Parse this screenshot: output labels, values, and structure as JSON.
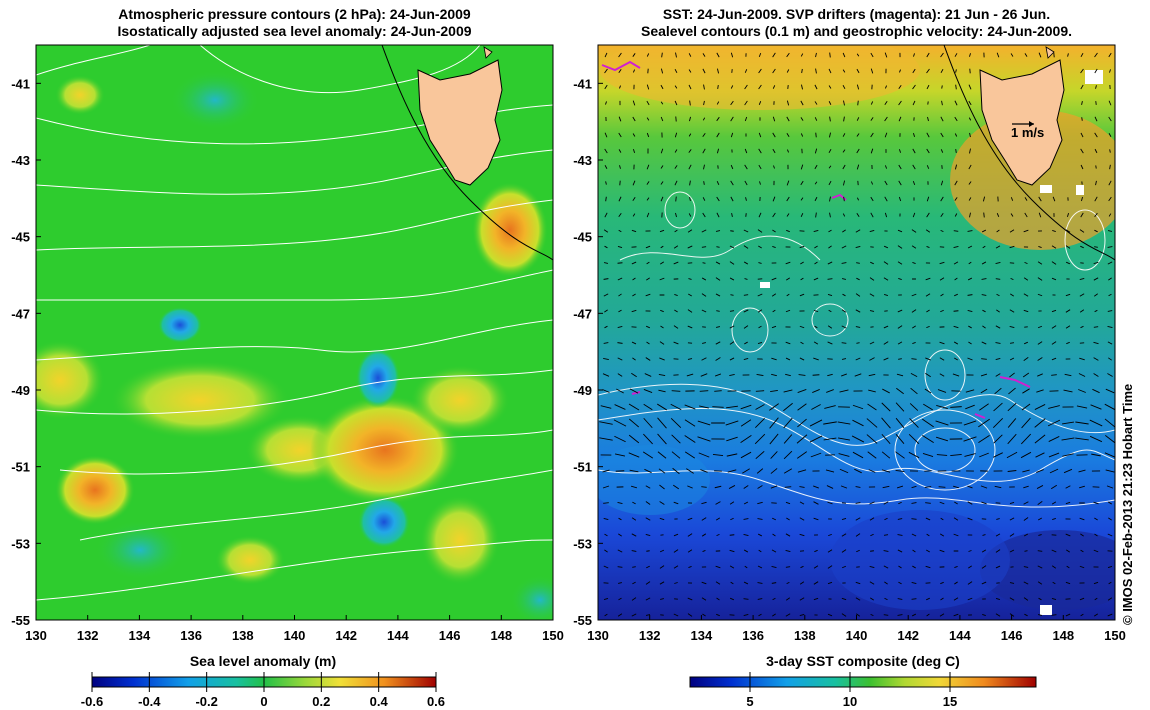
{
  "left_panel": {
    "title_line1": "Atmospheric pressure contours (2 hPa): 24-Jun-2009",
    "title_line2": "Isostatically adjusted sea level anomaly: 24-Jun-2009",
    "colorbar_title": "Sea level anomaly (m)",
    "colorbar_ticks": [
      "-0.6",
      "-0.4",
      "-0.2",
      "0",
      "0.2",
      "0.4",
      "0.6"
    ]
  },
  "right_panel": {
    "title_line1": "SST: 24-Jun-2009. SVP drifters (magenta): 21 Jun - 26 Jun.",
    "title_line2": "Sealevel contours (0.1 m) and geostrophic velocity: 24-Jun-2009.",
    "colorbar_title": "3-day SST composite (deg C)",
    "colorbar_ticks": [
      "5",
      "10",
      "15"
    ],
    "velocity_scale_label": "1 m/s"
  },
  "map_axes": {
    "x_ticks": [
      "130",
      "132",
      "134",
      "136",
      "138",
      "140",
      "142",
      "144",
      "146",
      "148",
      "150"
    ],
    "y_ticks": [
      "-41",
      "-43",
      "-45",
      "-47",
      "-49",
      "-51",
      "-53",
      "-55"
    ]
  },
  "credit": "© IMOS 02-Feb-2013 21:23 Hobart Time",
  "colors": {
    "land": "#f9c69b",
    "sla_background": "#2ecc2e",
    "sst_warm": "#f6b02a",
    "sst_mid": "#28b87a",
    "sst_cold": "#1a3fd8",
    "drifter": "#d020d0"
  }
}
